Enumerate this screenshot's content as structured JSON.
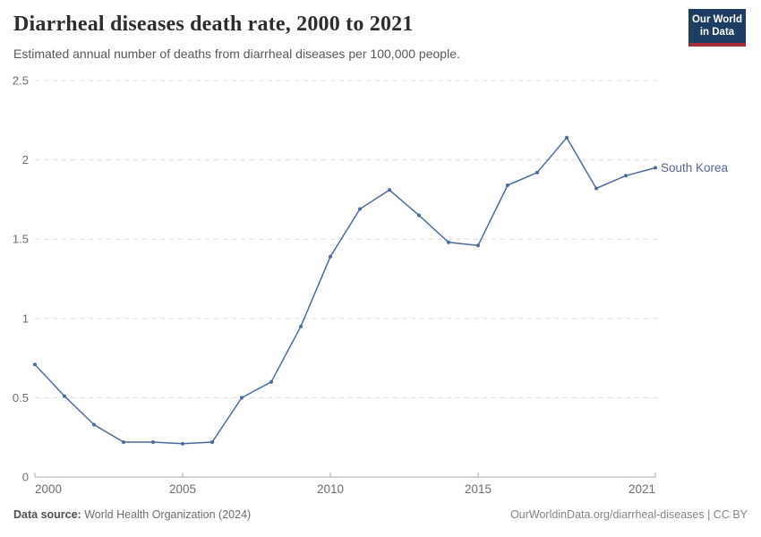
{
  "header": {
    "title": "Diarrheal diseases death rate, 2000 to 2021",
    "subtitle": "Estimated annual number of deaths from diarrheal diseases per 100,000 people.",
    "logo": {
      "line1": "Our World",
      "line2": "in Data"
    }
  },
  "chart_data": {
    "type": "line",
    "title": "Diarrheal diseases death rate, 2000 to 2021",
    "xlabel": "",
    "ylabel": "",
    "xlim": [
      2000,
      2021
    ],
    "ylim": [
      0,
      2.5
    ],
    "x_ticks": [
      2000,
      2005,
      2010,
      2015,
      2021
    ],
    "y_ticks": [
      0,
      0.5,
      1,
      1.5,
      2,
      2.5
    ],
    "grid": "horizontal-dashed",
    "legend_position": "end-of-line-label",
    "x": [
      2000,
      2001,
      2002,
      2003,
      2004,
      2005,
      2006,
      2007,
      2008,
      2009,
      2010,
      2011,
      2012,
      2013,
      2014,
      2015,
      2016,
      2017,
      2018,
      2019,
      2020,
      2021
    ],
    "series": [
      {
        "name": "South Korea",
        "values": [
          0.71,
          0.51,
          0.33,
          0.22,
          0.22,
          0.21,
          0.22,
          0.5,
          0.6,
          0.95,
          1.39,
          1.69,
          1.81,
          1.65,
          1.48,
          1.46,
          1.84,
          1.92,
          2.14,
          1.82,
          1.9,
          1.95
        ]
      }
    ]
  },
  "footer": {
    "source_label": "Data source:",
    "source_text": " World Health Organization (2024)",
    "credit": "OurWorldinData.org/diarrheal-diseases | CC BY"
  },
  "colors": {
    "line": "#4c6a9c",
    "entity_label": "#53678f",
    "grid": "#dcdcdc",
    "axis": "#a8a8a8",
    "tick_label": "#6e6e6e",
    "logo_bg": "#1d3d63",
    "logo_bar": "#a82b39"
  }
}
